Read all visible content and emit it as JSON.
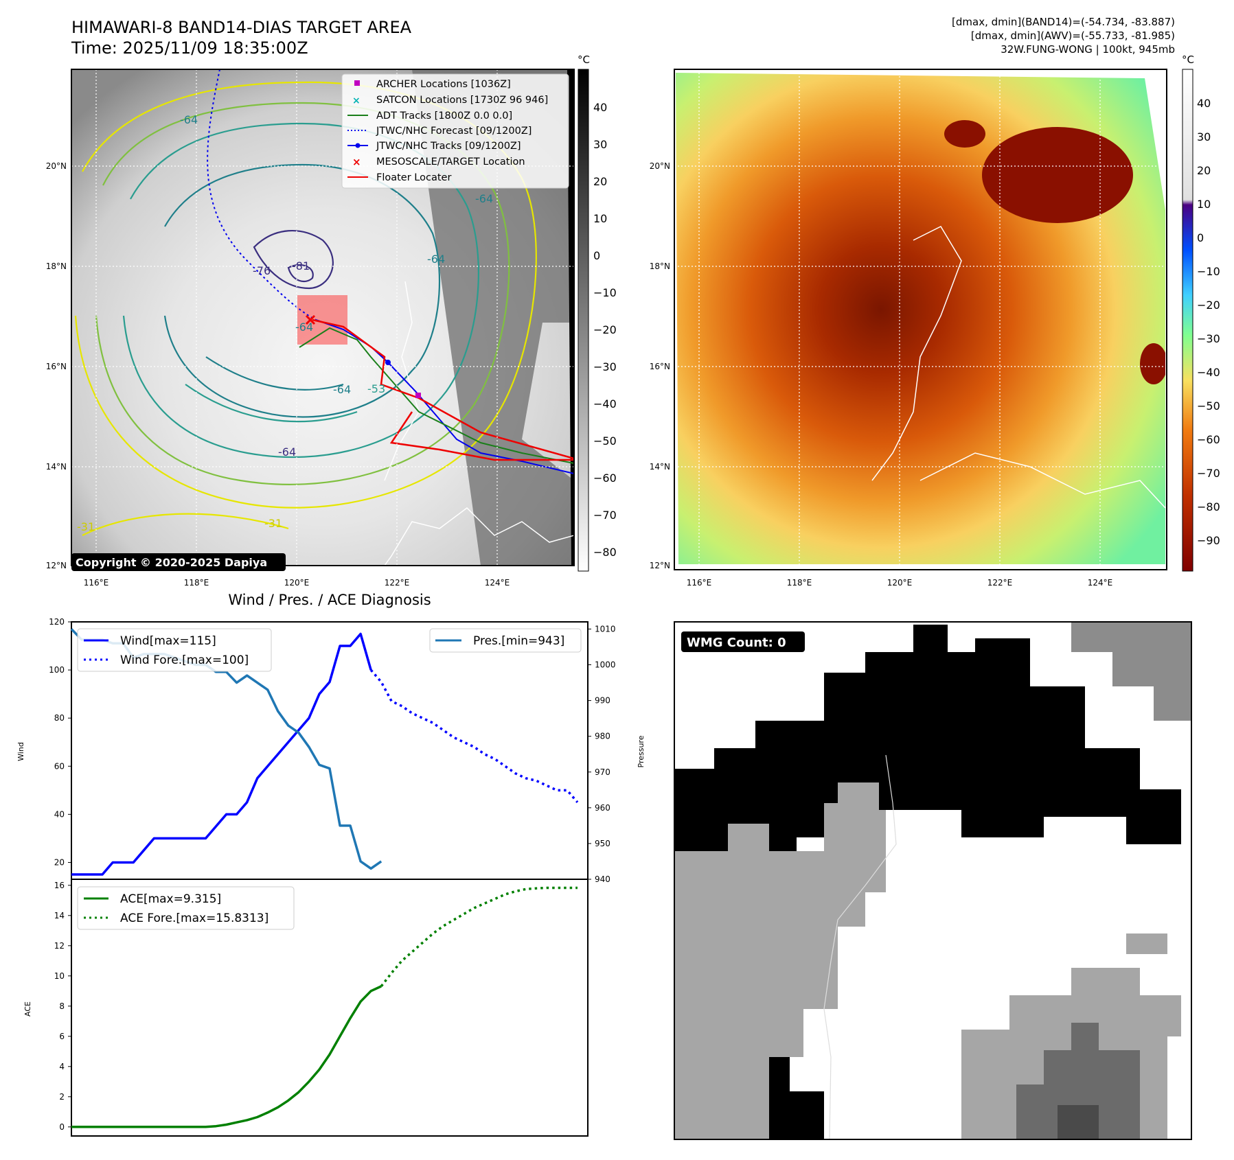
{
  "header": {
    "title_line1": "HIMAWARI-8 BAND14-DIAS TARGET AREA",
    "title_line2": "Time: 2025/11/09 18:35:00Z",
    "info_line1": "[dmax, dmin](BAND14)=(-54.734, -83.887)",
    "info_line2": "[dmax, dmin](AWV)=(-55.733, -81.985)",
    "info_line3": "32W.FUNG-WONG | 100kt, 945mb"
  },
  "map_left": {
    "lon_labels": [
      "116°E",
      "118°E",
      "120°E",
      "122°E",
      "124°E"
    ],
    "lat_labels": [
      "20°N",
      "18°N",
      "16°N",
      "14°N",
      "12°N"
    ],
    "copyright": "Copyright © 2020-2025 Dapiya",
    "legend": [
      {
        "label": "ARCHER Locations [1036Z]",
        "marker": "square",
        "color": "#c000c0"
      },
      {
        "label": "SATCON Locations [1730Z 96 946]",
        "marker": "x",
        "color": "#00b3b3"
      },
      {
        "label": "ADT Tracks [1800Z 0.0 0.0]",
        "marker": "line",
        "color": "#1a7f1a"
      },
      {
        "label": "JTWC/NHC Forecast [09/1200Z]",
        "marker": "dotted",
        "color": "#0000ee"
      },
      {
        "label": "JTWC/NHC Tracks [09/1200Z]",
        "marker": "line-dot",
        "color": "#0000ee"
      },
      {
        "label": "MESOSCALE/TARGET Location",
        "marker": "x",
        "color": "#ee0000"
      },
      {
        "label": "Floater Locater",
        "marker": "line",
        "color": "#ee0000"
      }
    ],
    "contour_labels": [
      "-81",
      "-76",
      "-64",
      "-64",
      "-64",
      "-64",
      "-64",
      "-64",
      "-53",
      "-31",
      "-31"
    ],
    "colorbar": {
      "unit": "°C",
      "ticks": [
        "40",
        "30",
        "20",
        "10",
        "0",
        "−10",
        "−20",
        "−30",
        "−40",
        "−50",
        "−60",
        "−70",
        "−80"
      ]
    }
  },
  "map_right": {
    "lon_labels": [
      "116°E",
      "118°E",
      "120°E",
      "122°E",
      "124°E"
    ],
    "lat_labels": [
      "20°N",
      "18°N",
      "16°N",
      "14°N",
      "12°N"
    ],
    "colorbar": {
      "unit": "°C",
      "ticks": [
        "40",
        "30",
        "20",
        "10",
        "0",
        "−10",
        "−20",
        "−30",
        "−40",
        "−50",
        "−60",
        "−70",
        "−80",
        "−90"
      ]
    }
  },
  "diagnosis": {
    "title": "Wind / Pres. / ACE Diagnosis",
    "wmg": "WMG Count: 0"
  },
  "chart_data": [
    {
      "type": "line",
      "title": "Wind / Pres. / ACE Diagnosis",
      "ylabel": "Wind",
      "ylabel_right": "Pressure",
      "ylim": [
        13,
        120
      ],
      "ylim_right": [
        940,
        1012
      ],
      "yticks": [
        "120",
        "100",
        "80",
        "60",
        "40",
        "20"
      ],
      "yticks_right": [
        "1010",
        "1000",
        "990",
        "980",
        "970",
        "960",
        "950",
        "940"
      ],
      "legend_left": [
        "Wind[max=115]",
        "Wind Fore.[max=100]"
      ],
      "legend_right": [
        "Pres.[min=943]"
      ],
      "series": [
        {
          "name": "Wind[max=115]",
          "axis": "left",
          "color": "#0000ff",
          "style": "solid",
          "x": [
            0,
            1,
            2,
            3,
            4,
            5,
            6,
            7,
            8,
            9,
            10,
            11,
            12,
            13,
            14,
            15,
            16,
            17,
            18,
            19,
            20,
            21,
            22,
            23,
            24,
            25,
            26,
            27,
            28,
            29
          ],
          "values": [
            15,
            15,
            15,
            15,
            20,
            20,
            20,
            25,
            30,
            30,
            30,
            30,
            30,
            30,
            35,
            40,
            40,
            45,
            55,
            60,
            65,
            70,
            75,
            80,
            90,
            95,
            110,
            110,
            115,
            100
          ]
        },
        {
          "name": "Wind Fore.[max=100]",
          "axis": "left",
          "color": "#0000ff",
          "style": "dotted",
          "x": [
            29,
            30,
            31,
            32,
            33,
            34,
            35,
            36,
            37,
            38,
            39,
            40,
            41,
            42,
            43,
            44,
            45,
            46,
            47,
            48,
            49
          ],
          "values": [
            100,
            95,
            87,
            85,
            82,
            80,
            78,
            75,
            72,
            70,
            68,
            65,
            63,
            60,
            57,
            55,
            54,
            52,
            50,
            50,
            45
          ]
        },
        {
          "name": "Pres.[min=943]",
          "axis": "right",
          "color": "#1f77b4",
          "style": "solid",
          "x": [
            0,
            1,
            2,
            3,
            4,
            5,
            6,
            7,
            8,
            9,
            10,
            11,
            12,
            13,
            14,
            15,
            16,
            17,
            18,
            19,
            20,
            21,
            22,
            23,
            24,
            25,
            26,
            27,
            28,
            29,
            30
          ],
          "values": [
            1010,
            1007,
            1007,
            1007,
            1006,
            1006,
            1002,
            1003,
            1003,
            1003,
            1002,
            1001,
            1000,
            1000,
            998,
            998,
            995,
            997,
            995,
            993,
            987,
            983,
            981,
            977,
            972,
            971,
            955,
            955,
            945,
            943,
            945
          ]
        }
      ]
    },
    {
      "type": "line",
      "ylabel": "ACE",
      "ylim": [
        -0.6,
        16.4
      ],
      "yticks": [
        "16",
        "14",
        "12",
        "10",
        "8",
        "6",
        "4",
        "2",
        "0"
      ],
      "legend": [
        "ACE[max=9.315]",
        "ACE Fore.[max=15.8313]"
      ],
      "series": [
        {
          "name": "ACE[max=9.315]",
          "color": "#008000",
          "style": "solid",
          "x": [
            0,
            2,
            4,
            6,
            8,
            10,
            12,
            13,
            14,
            15,
            16,
            17,
            18,
            19,
            20,
            21,
            22,
            23,
            24,
            25,
            26,
            27,
            28,
            29,
            30
          ],
          "values": [
            0,
            0,
            0,
            0,
            0,
            0,
            0,
            0,
            0.05,
            0.15,
            0.3,
            0.45,
            0.65,
            0.95,
            1.3,
            1.75,
            2.3,
            3.0,
            3.8,
            4.8,
            6.0,
            7.2,
            8.3,
            9.0,
            9.315
          ]
        },
        {
          "name": "ACE Fore.[max=15.8313]",
          "color": "#008000",
          "style": "dotted",
          "x": [
            30,
            31,
            32,
            33,
            34,
            35,
            36,
            37,
            38,
            39,
            40,
            41,
            42,
            43,
            44,
            45,
            46,
            47,
            48,
            49
          ],
          "values": [
            9.315,
            10.2,
            11.0,
            11.6,
            12.2,
            12.8,
            13.3,
            13.7,
            14.1,
            14.5,
            14.8,
            15.1,
            15.4,
            15.6,
            15.75,
            15.8,
            15.83,
            15.83,
            15.83,
            15.83
          ]
        }
      ]
    }
  ]
}
